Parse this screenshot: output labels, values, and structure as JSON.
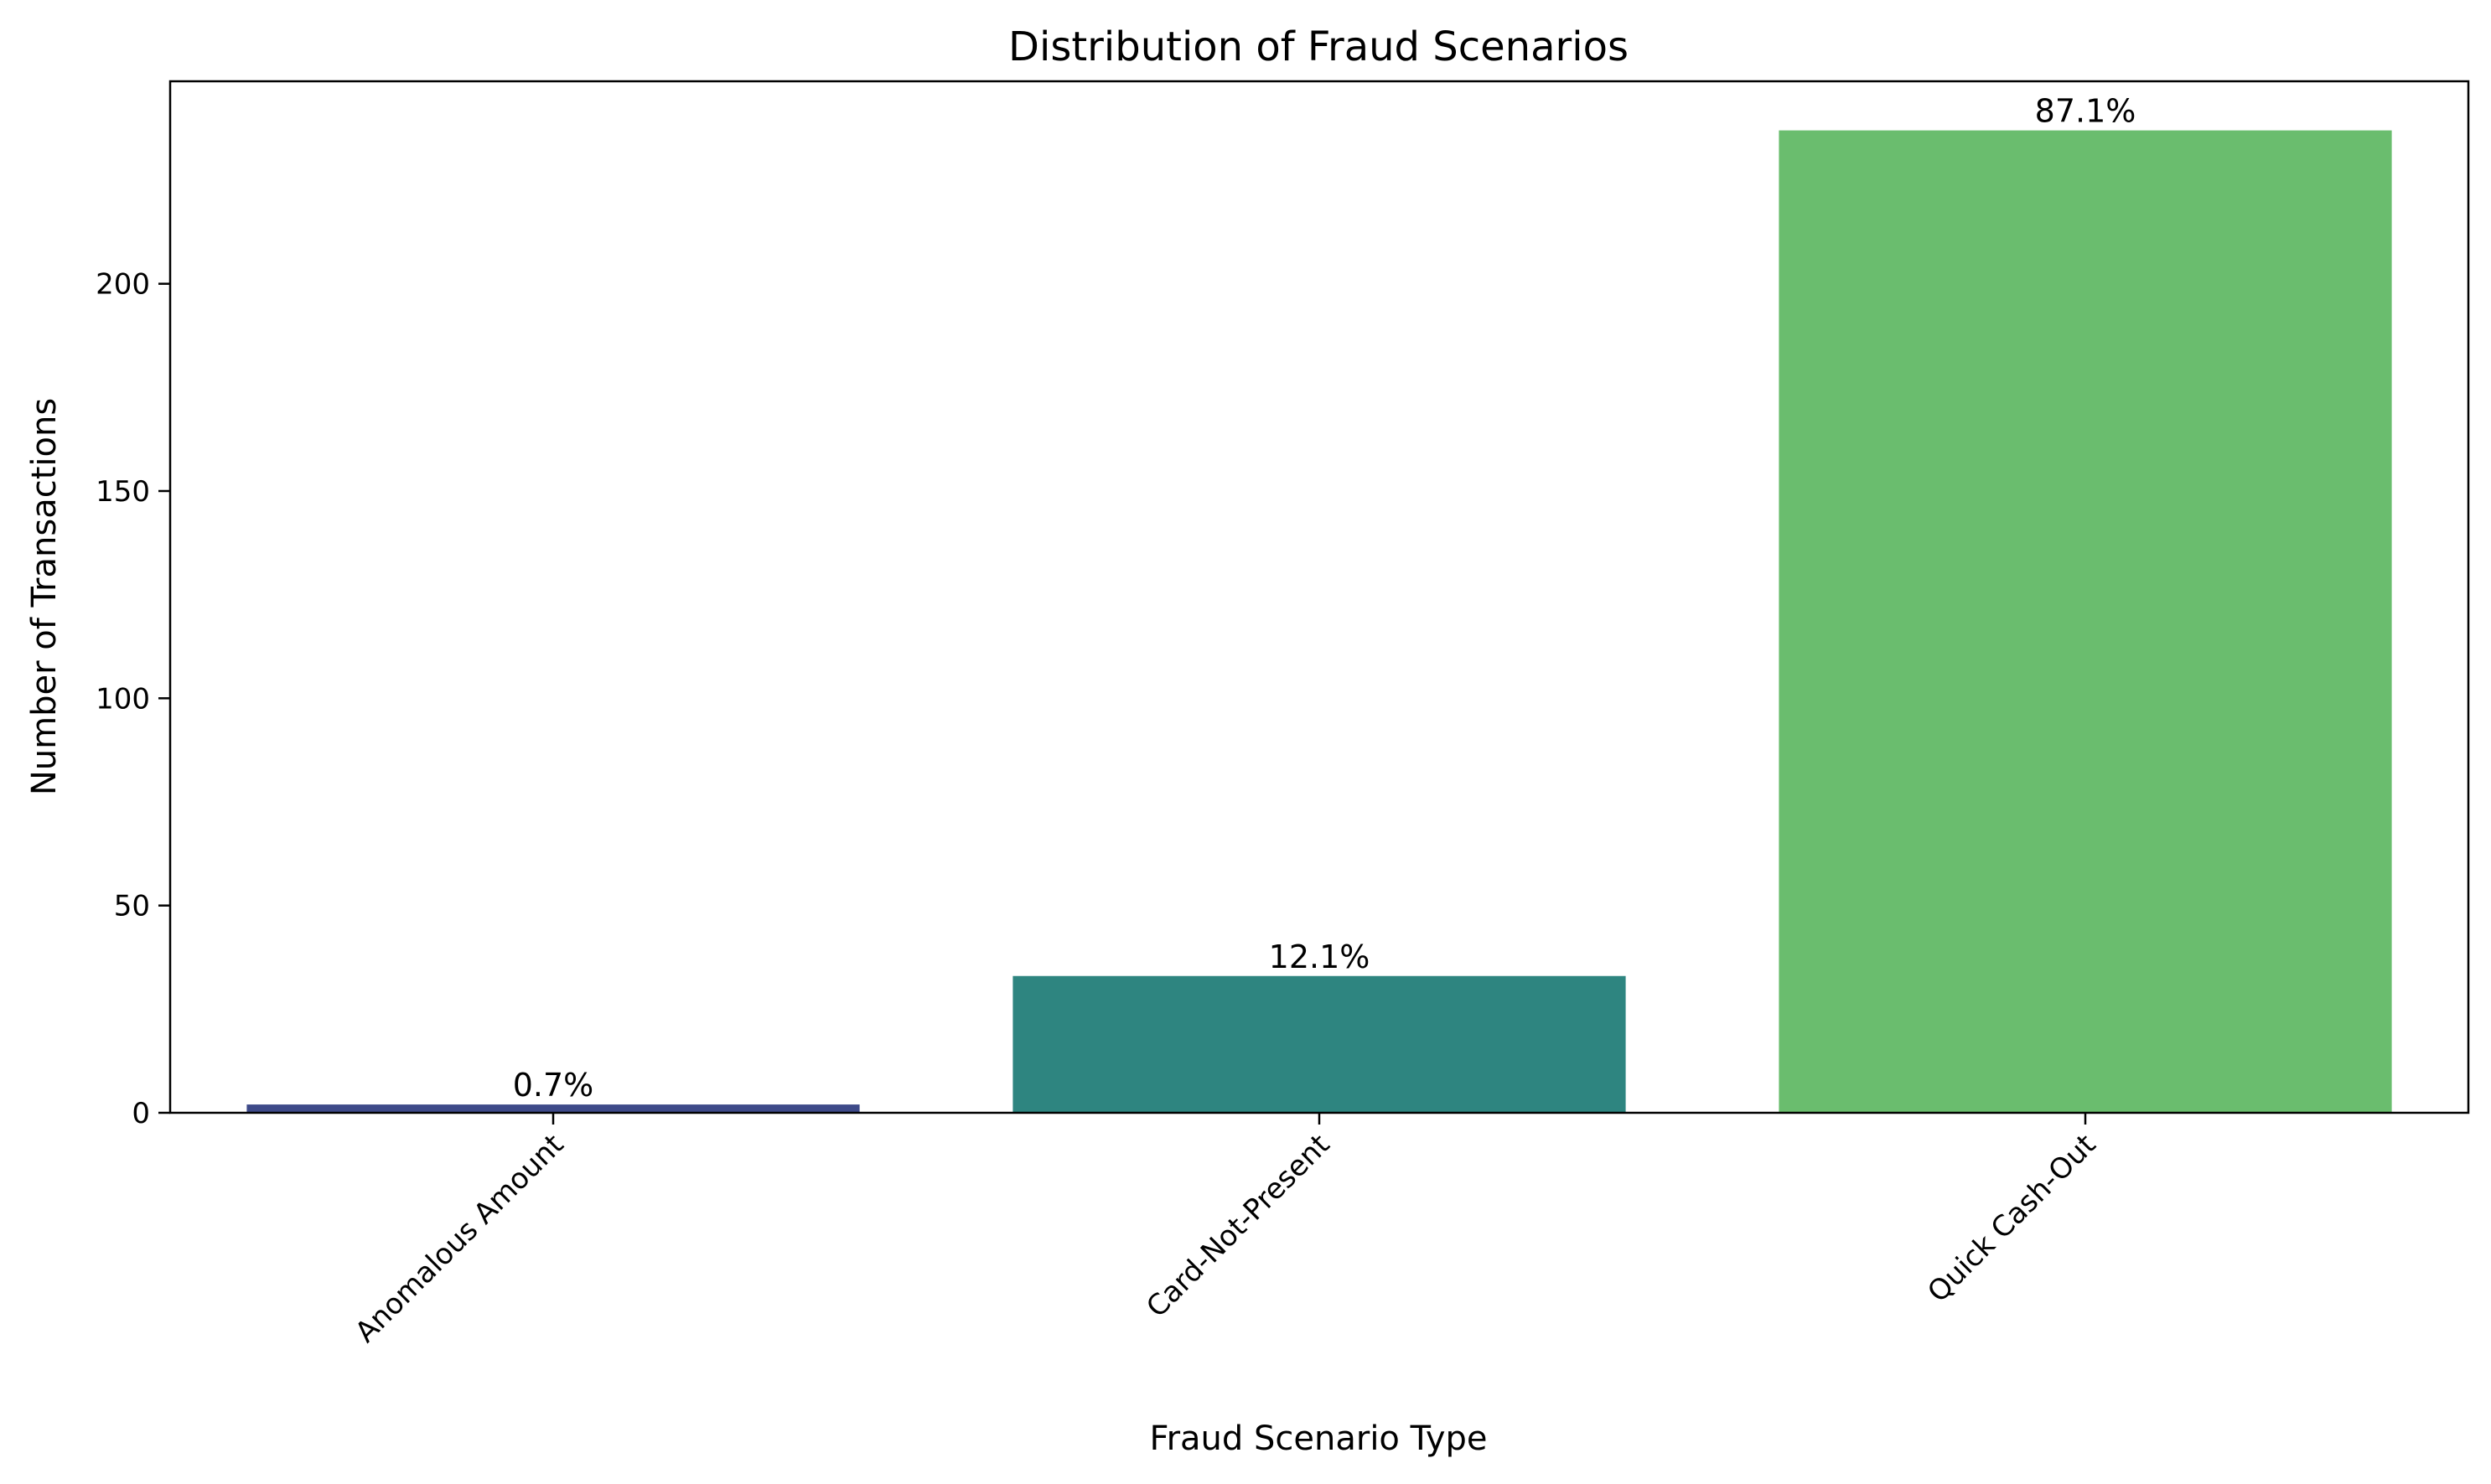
{
  "chart_data": {
    "type": "bar",
    "title": "Distribution of Fraud Scenarios",
    "xlabel": "Fraud Scenario Type",
    "ylabel": "Number of Transactions",
    "categories": [
      "Anomalous Amount",
      "Card-Not-Present",
      "Quick Cash-Out"
    ],
    "values": [
      2,
      33,
      237
    ],
    "value_labels": [
      "0.7%",
      "12.1%",
      "87.1%"
    ],
    "colors": [
      "#3e4a89",
      "#2e8580",
      "#6abd6e"
    ],
    "ylim": [
      0,
      248.85
    ],
    "yticks": [
      0,
      50,
      100,
      150,
      200
    ],
    "grid": false,
    "legend": "none"
  }
}
